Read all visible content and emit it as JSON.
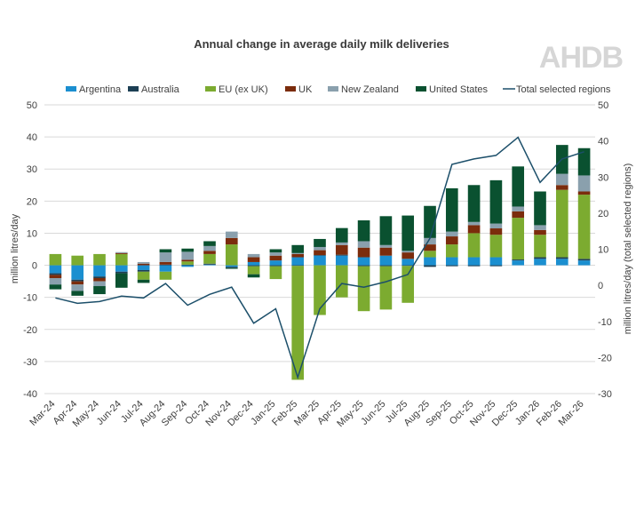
{
  "chart_data": {
    "type": "bar",
    "stacked": true,
    "title": "Annual change in average daily milk deliveries",
    "ylabel": "million litres/day",
    "y2label": "million litres/day (total selected regions)",
    "ylim": [
      -40,
      50
    ],
    "y2lim": [
      -30,
      50
    ],
    "ytick_step": 10,
    "grid": true,
    "legend_position": "top",
    "logo": "AHDB",
    "categories": [
      "Mar-24",
      "Apr-24",
      "May-24",
      "Jun-24",
      "Jul-24",
      "Aug-24",
      "Sep-24",
      "Oct-24",
      "Nov-24",
      "Dec-24",
      "Jan-25",
      "Feb-25",
      "Mar-25",
      "Apr-25",
      "May-25",
      "Jun-25",
      "Jul-25",
      "Aug-25",
      "Sep-25",
      "Oct-25",
      "Nov-25",
      "Dec-25",
      "Jan-26",
      "Feb-26",
      "Mar-26"
    ],
    "series": [
      {
        "name": "Argentina",
        "color": "#1b8fd0",
        "values": [
          -2.5,
          -4.5,
          -3.5,
          -2.0,
          -1.5,
          -2.0,
          -0.5,
          0.2,
          -0.5,
          1.0,
          1.5,
          2.5,
          3.0,
          3.0,
          2.5,
          3.0,
          2.0,
          2.5,
          2.5,
          2.5,
          2.5,
          1.5,
          2.0,
          2.0,
          1.5
        ]
      },
      {
        "name": "Australia",
        "color": "#1c3f54",
        "values": [
          -0.5,
          -0.5,
          -0.5,
          -0.5,
          -0.5,
          0.2,
          0.2,
          0.3,
          -0.3,
          -0.3,
          -0.3,
          -0.2,
          0.2,
          0.3,
          -0.3,
          -0.3,
          -0.2,
          -0.5,
          -0.3,
          -0.3,
          -0.3,
          0.3,
          0.5,
          0.5,
          0.5
        ]
      },
      {
        "name": "EU (ex UK)",
        "color": "#7cab30",
        "values": [
          3.5,
          3.0,
          3.5,
          3.5,
          -2.5,
          -2.5,
          1.0,
          3.0,
          6.5,
          -2.5,
          -4.0,
          -35.5,
          -15.5,
          -10.0,
          -14.0,
          -13.5,
          -11.5,
          2.0,
          4.0,
          7.5,
          7.0,
          13.0,
          7.0,
          21.0,
          20.0
        ]
      },
      {
        "name": "UK",
        "color": "#7b2c0c",
        "values": [
          -1.0,
          -1.0,
          -1.0,
          0.3,
          0.5,
          0.8,
          0.5,
          1.0,
          2.0,
          1.5,
          1.5,
          1.0,
          1.5,
          3.0,
          3.0,
          2.5,
          2.0,
          2.0,
          2.5,
          2.5,
          2.0,
          2.0,
          1.5,
          1.5,
          1.0
        ]
      },
      {
        "name": "New Zealand",
        "color": "#8aa0ad",
        "values": [
          -2.0,
          -2.0,
          -1.5,
          0.3,
          0.5,
          3.0,
          2.5,
          1.5,
          2.0,
          1.0,
          1.0,
          0.3,
          1.0,
          0.8,
          2.0,
          0.8,
          0.5,
          2.0,
          1.5,
          1.0,
          1.5,
          1.5,
          1.5,
          3.5,
          5.0
        ]
      },
      {
        "name": "United States",
        "color": "#0a5130",
        "values": [
          -1.5,
          -1.5,
          -2.5,
          -4.5,
          -1.0,
          1.0,
          1.0,
          1.5,
          -0.3,
          -1.0,
          1.0,
          2.5,
          2.5,
          4.5,
          6.5,
          9.0,
          11.0,
          10.0,
          13.5,
          11.5,
          13.5,
          12.5,
          10.5,
          9.0,
          8.5
        ]
      }
    ],
    "line": {
      "name": "Total selected regions",
      "color": "#1c4f6a",
      "values": [
        -3.5,
        -5.0,
        -4.5,
        -3.0,
        -3.5,
        0.5,
        -5.5,
        -2.5,
        -0.5,
        -10.5,
        -6.5,
        -25.5,
        -6.5,
        0.5,
        -0.5,
        1.0,
        3.0,
        13.0,
        33.5,
        35.0,
        36.0,
        41.0,
        28.5,
        35.0,
        37.0
      ]
    }
  }
}
